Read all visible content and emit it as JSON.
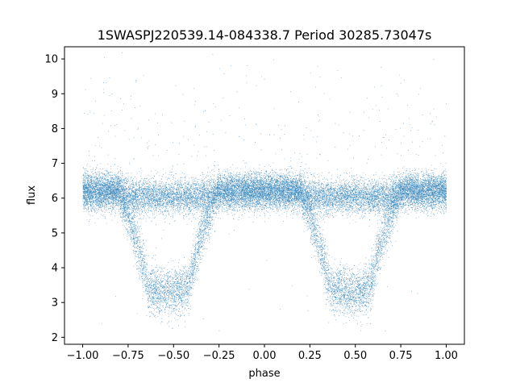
{
  "chart_data": {
    "type": "scatter",
    "title": "1SWASPJ220539.14-084338.7 Period 30285.73047s",
    "xlabel": "phase",
    "ylabel": "flux",
    "xlim": [
      -1.1,
      1.1
    ],
    "ylim": [
      1.8,
      10.35
    ],
    "xticks": [
      -1.0,
      -0.75,
      -0.5,
      -0.25,
      0.0,
      0.25,
      0.5,
      0.75,
      1.0
    ],
    "xtick_labels": [
      "−1.00",
      "−0.75",
      "−0.50",
      "−0.25",
      "0.00",
      "0.25",
      "0.50",
      "0.75",
      "1.00"
    ],
    "yticks": [
      2,
      3,
      4,
      5,
      6,
      7,
      8,
      9,
      10
    ],
    "ytick_labels": [
      "2",
      "3",
      "4",
      "5",
      "6",
      "7",
      "8",
      "9",
      "10"
    ],
    "grid": false,
    "legend": "none",
    "color": "#1f77b4",
    "phase_range": [
      -1.0,
      1.0
    ],
    "baseline_flux": 6.2,
    "baseline_scatter": 0.25,
    "eclipses": [
      {
        "center_phase": -0.53,
        "min_flux": 3.3
      },
      {
        "center_phase": 0.47,
        "min_flux": 3.3
      }
    ],
    "point_density": "very dense (thousands of points)"
  }
}
